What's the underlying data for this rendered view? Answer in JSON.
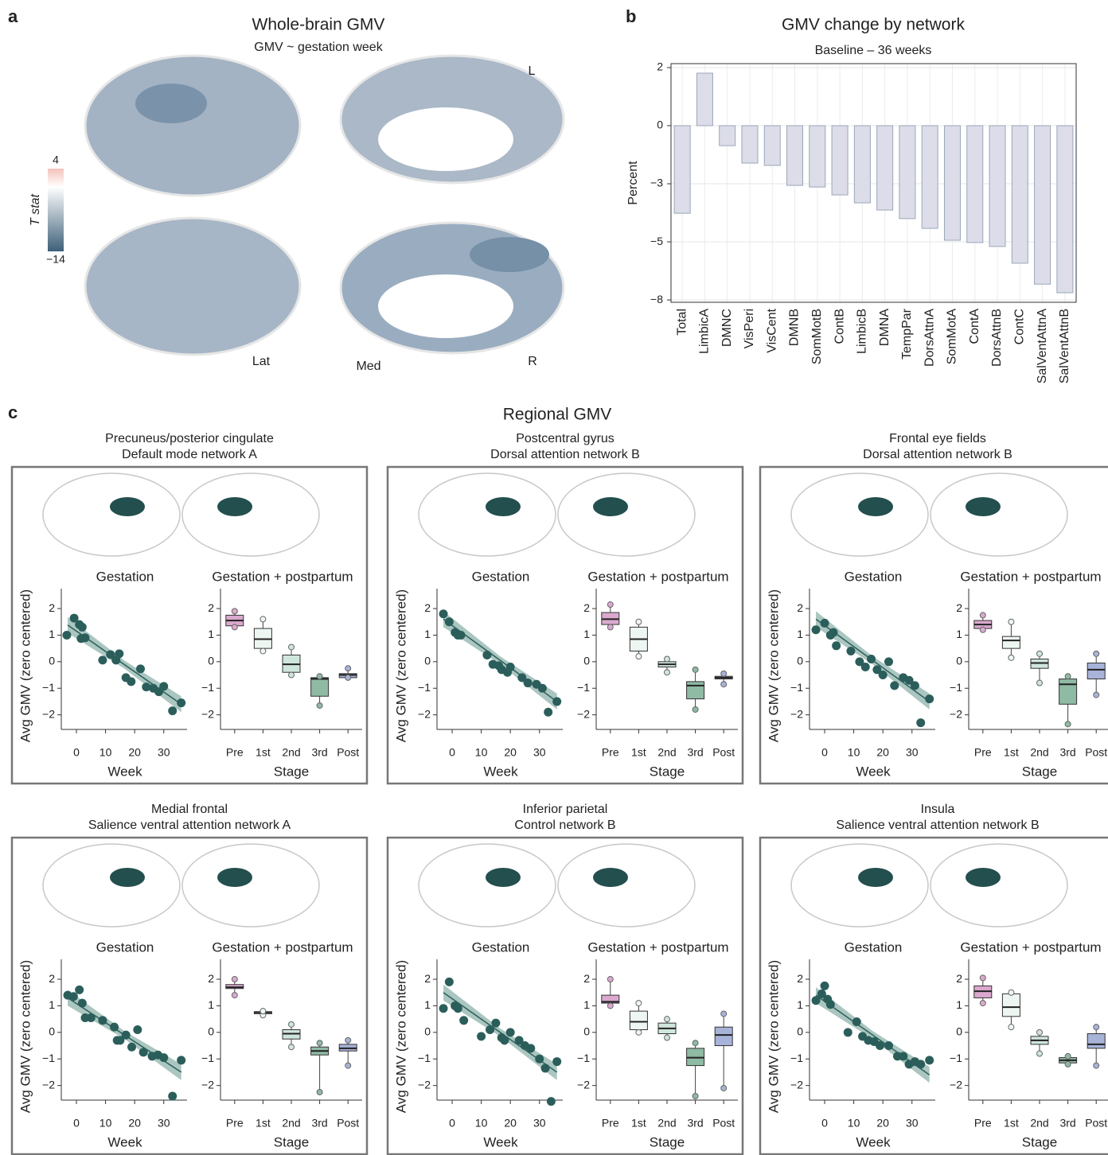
{
  "figure_labels": [
    "a",
    "b",
    "c"
  ],
  "panel_a": {
    "title": "Whole-brain GMV",
    "subtitle": "GMV ~ gestation week",
    "colorbar": {
      "label": "T stat",
      "ticks": [
        4,
        {
          "value": -14,
          "label": "−14"
        }
      ]
    },
    "view_labels": [
      "L",
      "Lat",
      "Med",
      "R"
    ]
  },
  "panel_c_title": "Regional GMV",
  "chart_data": [
    {
      "type": "bar",
      "title": "GMV change by network",
      "subtitle": "Baseline – 36 weeks",
      "ylabel": "Percent",
      "categories": [
        "Total",
        "LimbicA",
        "DMNC",
        "VisPeri",
        "VisCent",
        "DMNB",
        "SomMotB",
        "ContB",
        "LimbicB",
        "DMNA",
        "TempPar",
        "DorsAttnA",
        "SomMotA",
        "ContA",
        "DorsAttnB",
        "ContC",
        "SalVentAttnA",
        "SalVentAttnB"
      ],
      "values": [
        -3.77,
        2.26,
        -0.86,
        -1.61,
        -1.71,
        -2.57,
        -2.64,
        -2.98,
        -3.32,
        -3.63,
        -4.0,
        -4.42,
        -4.93,
        -5.03,
        -5.2,
        -5.92,
        -6.82,
        -7.19
      ],
      "color": "#dcdde9",
      "edge_color": "#9aa7b8",
      "ylim": [
        -7.6,
        2.67
      ],
      "yticks": [
        {
          "value": 2.5,
          "label": "2"
        },
        0,
        {
          "value": -2.5,
          "label": "−3"
        },
        {
          "value": -5,
          "label": "−5"
        },
        {
          "value": -7.5,
          "label": "−8"
        }
      ],
      "grid": true
    },
    {
      "type": "scatter",
      "title": "Precuneus/posterior cingulate",
      "subtitle": "Default mode network A",
      "panel_title": "Gestation",
      "x": [
        -3.3,
        -0.8,
        1,
        2,
        1.6,
        3,
        9,
        11.7,
        13.6,
        14.7,
        17,
        18.8,
        22,
        24,
        26.4,
        28.3,
        30,
        33,
        36
      ],
      "y": [
        1.0,
        1.64,
        1.4,
        1.3,
        0.87,
        0.9,
        0.06,
        0.27,
        0.06,
        0.3,
        -0.6,
        -0.75,
        -0.27,
        -0.95,
        -1.0,
        -1.13,
        -0.93,
        -1.85,
        -1.55
      ],
      "fit_x": [
        -3,
        36
      ],
      "fit_y": [
        1.38,
        -1.6
      ],
      "color": "#2b5e5b",
      "xlabel": "Week",
      "ylabel": "Avg GMV (zero centered)",
      "xlim": [
        -5.2,
        38
      ],
      "ylim": [
        -2.55,
        2.75
      ],
      "xticks": [
        0,
        10,
        20,
        30
      ],
      "yticks": [
        2,
        1,
        0,
        {
          "value": -1,
          "label": "−1"
        },
        {
          "value": -2,
          "label": "−2"
        }
      ]
    },
    {
      "type": "box",
      "panel_title": "Gestation + postpartum",
      "xlabel": "Stage",
      "categories": [
        "Pre",
        "1st",
        "2nd",
        "3rd",
        "Post"
      ],
      "low": [
        1.3,
        0.4,
        -0.5,
        -1.65,
        -0.6
      ],
      "q1": [
        1.35,
        0.5,
        -0.4,
        -1.3,
        -0.6
      ],
      "median": [
        1.55,
        0.85,
        -0.1,
        -0.65,
        -0.5
      ],
      "q3": [
        1.75,
        1.25,
        0.25,
        -0.6,
        -0.45
      ],
      "high": [
        1.9,
        1.6,
        0.55,
        -0.55,
        -0.25
      ],
      "colors": [
        "#dba9cf",
        "#eef6f2",
        "#cfe6dc",
        "#8fbaa4",
        "#a7b3d8"
      ],
      "ylim": [
        -2.55,
        2.75
      ],
      "yticks": [
        2,
        1,
        0,
        {
          "value": -1,
          "label": "−1"
        },
        {
          "value": -2,
          "label": "−2"
        }
      ]
    },
    {
      "type": "scatter",
      "title": "Postcentral gyrus",
      "subtitle": "Dorsal attention network B",
      "panel_title": "Gestation",
      "x": [
        -3,
        -1,
        1,
        2,
        3,
        12,
        14,
        16,
        17,
        19,
        20,
        24,
        26,
        29,
        31,
        33,
        36
      ],
      "y": [
        1.8,
        1.5,
        1.1,
        1.0,
        1.0,
        0.25,
        -0.1,
        -0.15,
        -0.3,
        -0.4,
        -0.2,
        -0.6,
        -0.8,
        -0.85,
        -1.0,
        -1.9,
        -1.5
      ],
      "fit_x": [
        -3,
        36
      ],
      "fit_y": [
        1.6,
        -1.5
      ],
      "color": "#2b5e5b",
      "xlabel": "Week",
      "ylabel": "Avg GMV (zero centered)",
      "xlim": [
        -5.2,
        38
      ],
      "ylim": [
        -2.55,
        2.75
      ],
      "xticks": [
        0,
        10,
        20,
        30
      ],
      "yticks": [
        2,
        1,
        0,
        {
          "value": -1,
          "label": "−1"
        },
        {
          "value": -2,
          "label": "−2"
        }
      ]
    },
    {
      "type": "box",
      "panel_title": "Gestation + postpartum",
      "xlabel": "Stage",
      "categories": [
        "Pre",
        "1st",
        "2nd",
        "3rd",
        "Post"
      ],
      "low": [
        1.3,
        0.2,
        -0.4,
        -1.8,
        -0.85
      ],
      "q1": [
        1.4,
        0.4,
        -0.2,
        -1.4,
        -0.65
      ],
      "median": [
        1.6,
        0.85,
        -0.1,
        -0.9,
        -0.6
      ],
      "q3": [
        1.85,
        1.3,
        0.0,
        -0.75,
        -0.55
      ],
      "high": [
        2.15,
        1.5,
        0.1,
        -0.3,
        -0.45
      ],
      "colors": [
        "#dba9cf",
        "#eef6f2",
        "#cfe6dc",
        "#8fbaa4",
        "#a7b3d8"
      ],
      "ylim": [
        -2.55,
        2.75
      ],
      "yticks": [
        2,
        1,
        0,
        {
          "value": -1,
          "label": "−1"
        },
        {
          "value": -2,
          "label": "−2"
        }
      ]
    },
    {
      "type": "scatter",
      "title": "Frontal eye fields",
      "subtitle": "Dorsal attention network B",
      "panel_title": "Gestation",
      "x": [
        -3,
        0,
        2,
        3,
        4,
        9,
        12,
        14,
        16,
        18,
        20,
        22,
        24,
        27,
        29,
        31,
        33,
        36
      ],
      "y": [
        1.2,
        1.45,
        1.0,
        1.1,
        0.6,
        0.4,
        0.0,
        -0.2,
        0.1,
        -0.3,
        -0.5,
        0.0,
        -0.9,
        -0.6,
        -0.7,
        -0.9,
        -2.3,
        -1.4
      ],
      "fit_x": [
        -3,
        36
      ],
      "fit_y": [
        1.6,
        -1.5
      ],
      "color": "#2b5e5b",
      "xlabel": "Week",
      "ylabel": "Avg GMV (zero centered)",
      "xlim": [
        -5.2,
        38
      ],
      "ylim": [
        -2.55,
        2.75
      ],
      "xticks": [
        0,
        10,
        20,
        30
      ],
      "yticks": [
        2,
        1,
        0,
        {
          "value": -1,
          "label": "−1"
        },
        {
          "value": -2,
          "label": "−2"
        }
      ]
    },
    {
      "type": "box",
      "panel_title": "Gestation + postpartum",
      "xlabel": "Stage",
      "categories": [
        "Pre",
        "1st",
        "2nd",
        "3rd",
        "Post"
      ],
      "low": [
        1.2,
        0.15,
        -0.8,
        -2.35,
        -1.25
      ],
      "q1": [
        1.25,
        0.5,
        -0.25,
        -1.6,
        -0.65
      ],
      "median": [
        1.4,
        0.8,
        -0.05,
        -0.85,
        -0.3
      ],
      "q3": [
        1.55,
        0.95,
        0.1,
        -0.65,
        -0.05
      ],
      "high": [
        1.75,
        1.5,
        0.3,
        -0.55,
        0.3
      ],
      "colors": [
        "#dba9cf",
        "#eef6f2",
        "#cfe6dc",
        "#8fbaa4",
        "#a7b3d8"
      ],
      "ylim": [
        -2.55,
        2.75
      ],
      "yticks": [
        2,
        1,
        0,
        {
          "value": -1,
          "label": "−1"
        },
        {
          "value": -2,
          "label": "−2"
        }
      ]
    },
    {
      "type": "scatter",
      "title": "Medial frontal",
      "subtitle": "Salience ventral attention network A",
      "panel_title": "Gestation",
      "x": [
        -3,
        -1,
        1,
        2,
        3,
        5,
        9,
        13,
        14,
        15,
        17,
        19,
        21,
        23,
        26,
        28,
        30,
        33,
        36
      ],
      "y": [
        1.4,
        1.35,
        1.6,
        1.1,
        0.55,
        0.55,
        0.45,
        0.2,
        -0.3,
        -0.3,
        -0.1,
        -0.55,
        0.1,
        -0.75,
        -0.9,
        -0.85,
        -0.95,
        -2.4,
        -1.05
      ],
      "fit_x": [
        -3,
        36
      ],
      "fit_y": [
        1.3,
        -1.5
      ],
      "color": "#2b5e5b",
      "xlabel": "Week",
      "ylabel": "Avg GMV (zero centered)",
      "xlim": [
        -5.2,
        38
      ],
      "ylim": [
        -2.55,
        2.75
      ],
      "xticks": [
        0,
        10,
        20,
        30
      ],
      "yticks": [
        2,
        1,
        0,
        {
          "value": -1,
          "label": "−1"
        },
        {
          "value": -2,
          "label": "−2"
        }
      ]
    },
    {
      "type": "box",
      "panel_title": "Gestation + postpartum",
      "xlabel": "Stage",
      "categories": [
        "Pre",
        "1st",
        "2nd",
        "3rd",
        "Post"
      ],
      "low": [
        1.4,
        0.65,
        -0.55,
        -2.25,
        -1.25
      ],
      "q1": [
        1.65,
        0.7,
        -0.25,
        -0.85,
        -0.7
      ],
      "median": [
        1.7,
        0.75,
        -0.05,
        -0.7,
        -0.6
      ],
      "q3": [
        1.8,
        0.78,
        0.1,
        -0.55,
        -0.45
      ],
      "high": [
        2.0,
        0.8,
        0.3,
        -0.4,
        -0.3
      ],
      "colors": [
        "#dba9cf",
        "#eef6f2",
        "#cfe6dc",
        "#8fbaa4",
        "#a7b3d8"
      ],
      "ylim": [
        -2.55,
        2.75
      ],
      "yticks": [
        2,
        1,
        0,
        {
          "value": -1,
          "label": "−1"
        },
        {
          "value": -2,
          "label": "−2"
        }
      ]
    },
    {
      "type": "scatter",
      "title": "Inferior parietal",
      "subtitle": "Control network B",
      "panel_title": "Gestation",
      "x": [
        -3,
        -1,
        1,
        2,
        4,
        10,
        13,
        15,
        17,
        18,
        20,
        23,
        25,
        27,
        30,
        32,
        34,
        36
      ],
      "y": [
        0.9,
        1.9,
        1.0,
        0.9,
        0.45,
        -0.15,
        0.1,
        0.35,
        -0.2,
        -0.3,
        0.0,
        -0.3,
        -0.5,
        -0.6,
        -1.0,
        -1.35,
        -2.6,
        -1.1
      ],
      "fit_x": [
        -3,
        36
      ],
      "fit_y": [
        1.5,
        -1.5
      ],
      "color": "#2b5e5b",
      "xlabel": "Week",
      "ylabel": "Avg GMV (zero centered)",
      "xlim": [
        -5.2,
        38
      ],
      "ylim": [
        -2.55,
        2.75
      ],
      "xticks": [
        0,
        10,
        20,
        30
      ],
      "yticks": [
        2,
        1,
        0,
        {
          "value": -1,
          "label": "−1"
        },
        {
          "value": -2,
          "label": "−2"
        }
      ]
    },
    {
      "type": "box",
      "panel_title": "Gestation + postpartum",
      "xlabel": "Stage",
      "categories": [
        "Pre",
        "1st",
        "2nd",
        "3rd",
        "Post"
      ],
      "low": [
        1.0,
        0.0,
        -0.2,
        -2.4,
        -2.1
      ],
      "q1": [
        1.1,
        0.1,
        -0.05,
        -1.25,
        -0.5
      ],
      "median": [
        1.15,
        0.4,
        0.15,
        -0.95,
        -0.1
      ],
      "q3": [
        1.4,
        0.8,
        0.35,
        -0.6,
        0.2
      ],
      "high": [
        2.0,
        1.1,
        0.5,
        -0.4,
        0.7
      ],
      "colors": [
        "#dba9cf",
        "#eef6f2",
        "#cfe6dc",
        "#8fbaa4",
        "#a7b3d8"
      ],
      "ylim": [
        -2.55,
        2.75
      ],
      "yticks": [
        2,
        1,
        0,
        {
          "value": -1,
          "label": "−1"
        },
        {
          "value": -2,
          "label": "−2"
        }
      ]
    },
    {
      "type": "scatter",
      "title": "Insula",
      "subtitle": "Salience ventral attention network B",
      "panel_title": "Gestation",
      "x": [
        -3,
        -1,
        0,
        1,
        2,
        8,
        11,
        13,
        15,
        17,
        19,
        22,
        25,
        27,
        29,
        31,
        33,
        36
      ],
      "y": [
        1.2,
        1.45,
        1.75,
        1.25,
        1.05,
        0.0,
        0.4,
        -0.15,
        -0.3,
        -0.35,
        -0.5,
        -0.5,
        -0.9,
        -0.9,
        -1.2,
        -1.1,
        -1.2,
        -1.05
      ],
      "fit_x": [
        -3,
        36
      ],
      "fit_y": [
        1.4,
        -1.6
      ],
      "color": "#2b5e5b",
      "xlabel": "Week",
      "ylabel": "Avg GMV (zero centered)",
      "xlim": [
        -5.2,
        38
      ],
      "ylim": [
        -2.55,
        2.75
      ],
      "xticks": [
        0,
        10,
        20,
        30
      ],
      "yticks": [
        2,
        1,
        0,
        {
          "value": -1,
          "label": "−1"
        },
        {
          "value": -2,
          "label": "−2"
        }
      ]
    },
    {
      "type": "box",
      "panel_title": "Gestation + postpartum",
      "xlabel": "Stage",
      "categories": [
        "Pre",
        "1st",
        "2nd",
        "3rd",
        "Post"
      ],
      "low": [
        1.1,
        0.2,
        -0.8,
        -1.2,
        -1.25
      ],
      "q1": [
        1.3,
        0.6,
        -0.45,
        -1.15,
        -0.6
      ],
      "median": [
        1.55,
        0.95,
        -0.3,
        -1.05,
        -0.45
      ],
      "q3": [
        1.75,
        1.45,
        -0.15,
        -0.95,
        -0.05
      ],
      "high": [
        2.05,
        1.5,
        0.0,
        -0.9,
        0.2
      ],
      "colors": [
        "#dba9cf",
        "#eef6f2",
        "#cfe6dc",
        "#8fbaa4",
        "#a7b3d8"
      ],
      "ylim": [
        -2.55,
        2.75
      ],
      "yticks": [
        2,
        1,
        0,
        {
          "value": -1,
          "label": "−1"
        },
        {
          "value": -2,
          "label": "−2"
        }
      ]
    }
  ]
}
